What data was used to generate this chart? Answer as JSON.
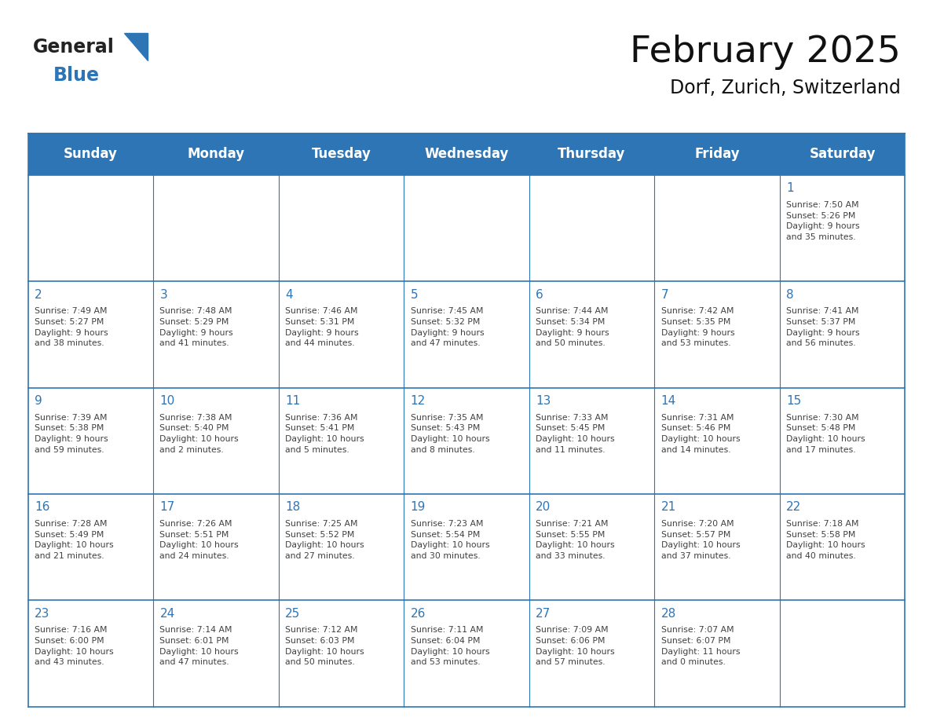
{
  "title": "February 2025",
  "subtitle": "Dorf, Zurich, Switzerland",
  "header_bg_color": "#2E75B6",
  "header_text_color": "#FFFFFF",
  "cell_bg_color": "#FFFFFF",
  "grid_line_color": "#2E75B6",
  "day_number_color": "#2E75B6",
  "info_text_color": "#404040",
  "background_color": "#FFFFFF",
  "days_of_week": [
    "Sunday",
    "Monday",
    "Tuesday",
    "Wednesday",
    "Thursday",
    "Friday",
    "Saturday"
  ],
  "weeks": [
    {
      "days": [
        {
          "date": "",
          "info": ""
        },
        {
          "date": "",
          "info": ""
        },
        {
          "date": "",
          "info": ""
        },
        {
          "date": "",
          "info": ""
        },
        {
          "date": "",
          "info": ""
        },
        {
          "date": "",
          "info": ""
        },
        {
          "date": "1",
          "info": "Sunrise: 7:50 AM\nSunset: 5:26 PM\nDaylight: 9 hours\nand 35 minutes."
        }
      ]
    },
    {
      "days": [
        {
          "date": "2",
          "info": "Sunrise: 7:49 AM\nSunset: 5:27 PM\nDaylight: 9 hours\nand 38 minutes."
        },
        {
          "date": "3",
          "info": "Sunrise: 7:48 AM\nSunset: 5:29 PM\nDaylight: 9 hours\nand 41 minutes."
        },
        {
          "date": "4",
          "info": "Sunrise: 7:46 AM\nSunset: 5:31 PM\nDaylight: 9 hours\nand 44 minutes."
        },
        {
          "date": "5",
          "info": "Sunrise: 7:45 AM\nSunset: 5:32 PM\nDaylight: 9 hours\nand 47 minutes."
        },
        {
          "date": "6",
          "info": "Sunrise: 7:44 AM\nSunset: 5:34 PM\nDaylight: 9 hours\nand 50 minutes."
        },
        {
          "date": "7",
          "info": "Sunrise: 7:42 AM\nSunset: 5:35 PM\nDaylight: 9 hours\nand 53 minutes."
        },
        {
          "date": "8",
          "info": "Sunrise: 7:41 AM\nSunset: 5:37 PM\nDaylight: 9 hours\nand 56 minutes."
        }
      ]
    },
    {
      "days": [
        {
          "date": "9",
          "info": "Sunrise: 7:39 AM\nSunset: 5:38 PM\nDaylight: 9 hours\nand 59 minutes."
        },
        {
          "date": "10",
          "info": "Sunrise: 7:38 AM\nSunset: 5:40 PM\nDaylight: 10 hours\nand 2 minutes."
        },
        {
          "date": "11",
          "info": "Sunrise: 7:36 AM\nSunset: 5:41 PM\nDaylight: 10 hours\nand 5 minutes."
        },
        {
          "date": "12",
          "info": "Sunrise: 7:35 AM\nSunset: 5:43 PM\nDaylight: 10 hours\nand 8 minutes."
        },
        {
          "date": "13",
          "info": "Sunrise: 7:33 AM\nSunset: 5:45 PM\nDaylight: 10 hours\nand 11 minutes."
        },
        {
          "date": "14",
          "info": "Sunrise: 7:31 AM\nSunset: 5:46 PM\nDaylight: 10 hours\nand 14 minutes."
        },
        {
          "date": "15",
          "info": "Sunrise: 7:30 AM\nSunset: 5:48 PM\nDaylight: 10 hours\nand 17 minutes."
        }
      ]
    },
    {
      "days": [
        {
          "date": "16",
          "info": "Sunrise: 7:28 AM\nSunset: 5:49 PM\nDaylight: 10 hours\nand 21 minutes."
        },
        {
          "date": "17",
          "info": "Sunrise: 7:26 AM\nSunset: 5:51 PM\nDaylight: 10 hours\nand 24 minutes."
        },
        {
          "date": "18",
          "info": "Sunrise: 7:25 AM\nSunset: 5:52 PM\nDaylight: 10 hours\nand 27 minutes."
        },
        {
          "date": "19",
          "info": "Sunrise: 7:23 AM\nSunset: 5:54 PM\nDaylight: 10 hours\nand 30 minutes."
        },
        {
          "date": "20",
          "info": "Sunrise: 7:21 AM\nSunset: 5:55 PM\nDaylight: 10 hours\nand 33 minutes."
        },
        {
          "date": "21",
          "info": "Sunrise: 7:20 AM\nSunset: 5:57 PM\nDaylight: 10 hours\nand 37 minutes."
        },
        {
          "date": "22",
          "info": "Sunrise: 7:18 AM\nSunset: 5:58 PM\nDaylight: 10 hours\nand 40 minutes."
        }
      ]
    },
    {
      "days": [
        {
          "date": "23",
          "info": "Sunrise: 7:16 AM\nSunset: 6:00 PM\nDaylight: 10 hours\nand 43 minutes."
        },
        {
          "date": "24",
          "info": "Sunrise: 7:14 AM\nSunset: 6:01 PM\nDaylight: 10 hours\nand 47 minutes."
        },
        {
          "date": "25",
          "info": "Sunrise: 7:12 AM\nSunset: 6:03 PM\nDaylight: 10 hours\nand 50 minutes."
        },
        {
          "date": "26",
          "info": "Sunrise: 7:11 AM\nSunset: 6:04 PM\nDaylight: 10 hours\nand 53 minutes."
        },
        {
          "date": "27",
          "info": "Sunrise: 7:09 AM\nSunset: 6:06 PM\nDaylight: 10 hours\nand 57 minutes."
        },
        {
          "date": "28",
          "info": "Sunrise: 7:07 AM\nSunset: 6:07 PM\nDaylight: 11 hours\nand 0 minutes."
        },
        {
          "date": "",
          "info": ""
        }
      ]
    }
  ],
  "logo_text1": "General",
  "logo_text2": "Blue",
  "logo_text1_color": "#222222",
  "logo_text2_color": "#2E75B6",
  "logo_triangle_color": "#2E75B6"
}
